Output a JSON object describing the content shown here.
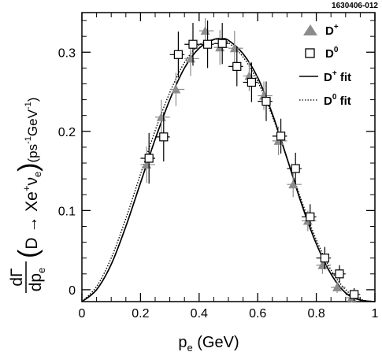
{
  "figure_id": "1630406-012",
  "chart_data": {
    "type": "scatter",
    "xlabel": "p",
    "xlabel_sub": "e",
    "xlabel_unit": " (GeV)",
    "ylabel": {
      "num": "dΓ",
      "den": "dp",
      "den_sub": "e",
      "lparen": "(",
      "proc": "D → Xe",
      "proc_sup": "+",
      "nu": "ν",
      "nu_sub": "e",
      "rparen": ")",
      "unit": "(ps",
      "unit_sup1": "-1",
      "unit_mid": "GeV",
      "unit_sup2": "-1",
      "unit_end": ")"
    },
    "xlim": [
      0,
      1
    ],
    "ylim": [
      -0.015,
      0.35
    ],
    "x_ticks": [
      {
        "v": 0,
        "label": "0"
      },
      {
        "v": 0.2,
        "label": "0.2"
      },
      {
        "v": 0.4,
        "label": "0.4"
      },
      {
        "v": 0.6,
        "label": "0.6"
      },
      {
        "v": 0.8,
        "label": "0.8"
      },
      {
        "v": 1,
        "label": "1"
      }
    ],
    "y_ticks": [
      {
        "v": 0,
        "label": "0"
      },
      {
        "v": 0.1,
        "label": "0.1"
      },
      {
        "v": 0.2,
        "label": "0.2"
      },
      {
        "v": 0.3,
        "label": "0.3"
      }
    ],
    "legend_position": "top-right",
    "series": [
      {
        "name": "D",
        "name_sup": "+",
        "marker": "triangle",
        "color": "#8c8c8c",
        "points": [
          {
            "x": 0.225,
            "y": 0.158,
            "err": 0.023
          },
          {
            "x": 0.275,
            "y": 0.218,
            "err": 0.022
          },
          {
            "x": 0.325,
            "y": 0.253,
            "err": 0.021
          },
          {
            "x": 0.375,
            "y": 0.292,
            "err": 0.022
          },
          {
            "x": 0.425,
            "y": 0.327,
            "err": 0.016
          },
          {
            "x": 0.475,
            "y": 0.306,
            "err": 0.022
          },
          {
            "x": 0.525,
            "y": 0.305,
            "err": 0.022
          },
          {
            "x": 0.575,
            "y": 0.27,
            "err": 0.019
          },
          {
            "x": 0.625,
            "y": 0.245,
            "err": 0.018
          },
          {
            "x": 0.675,
            "y": 0.188,
            "err": 0.018
          },
          {
            "x": 0.725,
            "y": 0.133,
            "err": 0.016
          },
          {
            "x": 0.775,
            "y": 0.087,
            "err": 0.013
          },
          {
            "x": 0.825,
            "y": 0.031,
            "err": 0.011
          },
          {
            "x": 0.875,
            "y": 0.003,
            "err": 0.007
          },
          {
            "x": 0.925,
            "y": -0.01,
            "err": 0.006
          }
        ]
      },
      {
        "name": "D",
        "name_sup": "0",
        "marker": "open-square",
        "color": "#000000",
        "points": [
          {
            "x": 0.225,
            "y": 0.166,
            "err": 0.032
          },
          {
            "x": 0.275,
            "y": 0.193,
            "err": 0.031
          },
          {
            "x": 0.325,
            "y": 0.297,
            "err": 0.029
          },
          {
            "x": 0.375,
            "y": 0.31,
            "err": 0.027
          },
          {
            "x": 0.425,
            "y": 0.31,
            "err": 0.03
          },
          {
            "x": 0.475,
            "y": 0.311,
            "err": 0.026
          },
          {
            "x": 0.525,
            "y": 0.282,
            "err": 0.025
          },
          {
            "x": 0.575,
            "y": 0.262,
            "err": 0.025
          },
          {
            "x": 0.625,
            "y": 0.238,
            "err": 0.025
          },
          {
            "x": 0.675,
            "y": 0.194,
            "err": 0.022
          },
          {
            "x": 0.725,
            "y": 0.153,
            "err": 0.02
          },
          {
            "x": 0.775,
            "y": 0.092,
            "err": 0.016
          },
          {
            "x": 0.825,
            "y": 0.04,
            "err": 0.014
          },
          {
            "x": 0.875,
            "y": 0.02,
            "err": 0.011
          },
          {
            "x": 0.925,
            "y": -0.006,
            "err": 0.008
          }
        ]
      },
      {
        "name": "D",
        "name_sup": "+",
        "name_suffix": " fit",
        "marker": "line",
        "style": "solid",
        "color": "#000000",
        "points": [
          {
            "x": 0.0,
            "y": -0.015
          },
          {
            "x": 0.05,
            "y": 0.0
          },
          {
            "x": 0.1,
            "y": 0.032
          },
          {
            "x": 0.15,
            "y": 0.08
          },
          {
            "x": 0.2,
            "y": 0.135
          },
          {
            "x": 0.25,
            "y": 0.19
          },
          {
            "x": 0.3,
            "y": 0.24
          },
          {
            "x": 0.35,
            "y": 0.28
          },
          {
            "x": 0.4,
            "y": 0.305
          },
          {
            "x": 0.45,
            "y": 0.316
          },
          {
            "x": 0.475,
            "y": 0.317
          },
          {
            "x": 0.5,
            "y": 0.315
          },
          {
            "x": 0.55,
            "y": 0.298
          },
          {
            "x": 0.6,
            "y": 0.268
          },
          {
            "x": 0.65,
            "y": 0.222
          },
          {
            "x": 0.7,
            "y": 0.166
          },
          {
            "x": 0.75,
            "y": 0.108
          },
          {
            "x": 0.8,
            "y": 0.058
          },
          {
            "x": 0.85,
            "y": 0.02
          },
          {
            "x": 0.9,
            "y": -0.004
          },
          {
            "x": 0.95,
            "y": -0.013
          },
          {
            "x": 1.0,
            "y": -0.015
          }
        ]
      },
      {
        "name": "D",
        "name_sup": "0",
        "name_suffix": " fit",
        "marker": "line",
        "style": "dotted",
        "color": "#000000",
        "points": [
          {
            "x": 0.0,
            "y": -0.015
          },
          {
            "x": 0.05,
            "y": 0.004
          },
          {
            "x": 0.1,
            "y": 0.04
          },
          {
            "x": 0.15,
            "y": 0.09
          },
          {
            "x": 0.2,
            "y": 0.146
          },
          {
            "x": 0.25,
            "y": 0.201
          },
          {
            "x": 0.3,
            "y": 0.249
          },
          {
            "x": 0.35,
            "y": 0.287
          },
          {
            "x": 0.4,
            "y": 0.309
          },
          {
            "x": 0.45,
            "y": 0.316
          },
          {
            "x": 0.475,
            "y": 0.315
          },
          {
            "x": 0.5,
            "y": 0.312
          },
          {
            "x": 0.55,
            "y": 0.294
          },
          {
            "x": 0.6,
            "y": 0.263
          },
          {
            "x": 0.65,
            "y": 0.219
          },
          {
            "x": 0.7,
            "y": 0.166
          },
          {
            "x": 0.75,
            "y": 0.112
          },
          {
            "x": 0.8,
            "y": 0.063
          },
          {
            "x": 0.85,
            "y": 0.025
          },
          {
            "x": 0.9,
            "y": 0.0
          },
          {
            "x": 0.95,
            "y": -0.012
          },
          {
            "x": 1.0,
            "y": -0.015
          }
        ]
      }
    ]
  }
}
